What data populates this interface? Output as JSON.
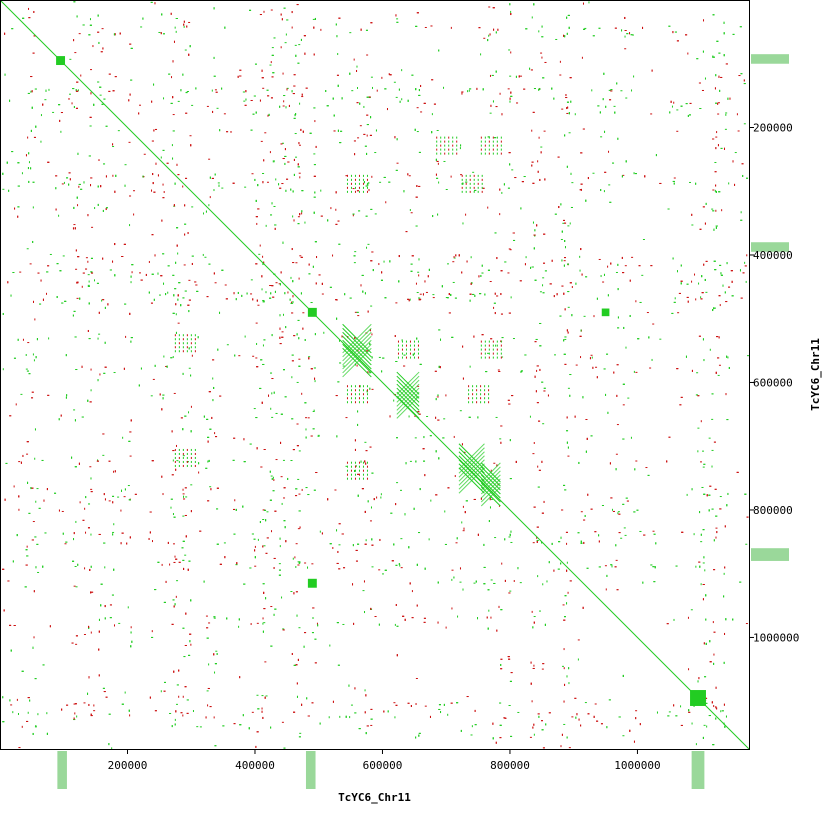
{
  "chart_data": {
    "type": "scatter",
    "subtype": "dotplot",
    "title": "",
    "xlabel": "TcYC6_Chr11",
    "ylabel": "TcYC6_Chr11",
    "xlim": [
      0,
      1175000
    ],
    "ylim": [
      0,
      1175000
    ],
    "y_inverted": true,
    "x_ticks": [
      200000,
      400000,
      600000,
      800000,
      1000000
    ],
    "y_ticks": [
      200000,
      400000,
      600000,
      800000,
      1000000
    ],
    "x_tick_labels": [
      "200000",
      "400000",
      "600000",
      "800000",
      "1000000"
    ],
    "y_tick_labels": [
      "200000",
      "400000",
      "600000",
      "800000",
      "1000000"
    ],
    "grid": false,
    "legend": "none",
    "colors": {
      "forward": "#22cc22",
      "reverse": "#cc1111",
      "margin_track": "#9ad89a",
      "frame": "#000000"
    },
    "series": [
      {
        "kind": "self-diagonal",
        "orientation": "forward",
        "x": [
          0,
          1175000
        ],
        "y": [
          0,
          1175000
        ]
      },
      {
        "kind": "block-clusters",
        "orientation": "forward",
        "points": [
          {
            "x": 95000,
            "y": 95000,
            "size": 14000
          },
          {
            "x": 490000,
            "y": 490000,
            "size": 14000
          },
          {
            "x": 1095000,
            "y": 1095000,
            "size": 25000
          },
          {
            "x": 490000,
            "y": 915000,
            "size": 14000
          },
          {
            "x": 950000,
            "y": 490000,
            "size": 12000
          },
          {
            "x": 560000,
            "y": 550000,
            "size": 45000
          },
          {
            "x": 640000,
            "y": 620000,
            "size": 35000
          },
          {
            "x": 740000,
            "y": 735000,
            "size": 40000
          },
          {
            "x": 770000,
            "y": 760000,
            "size": 30000
          }
        ]
      },
      {
        "kind": "repeat-grids",
        "orientation": "mixed",
        "points": [
          {
            "x": 560000,
            "y": 290000
          },
          {
            "x": 740000,
            "y": 290000
          },
          {
            "x": 700000,
            "y": 230000
          },
          {
            "x": 770000,
            "y": 230000
          },
          {
            "x": 770000,
            "y": 550000
          },
          {
            "x": 640000,
            "y": 550000
          },
          {
            "x": 750000,
            "y": 620000
          },
          {
            "x": 560000,
            "y": 740000
          },
          {
            "x": 560000,
            "y": 620000
          },
          {
            "x": 290000,
            "y": 540000
          },
          {
            "x": 290000,
            "y": 720000
          }
        ]
      }
    ],
    "margin_tracks": {
      "right": [
        {
          "start": 85000,
          "end": 100000
        },
        {
          "start": 380000,
          "end": 395000
        },
        {
          "start": 860000,
          "end": 880000
        }
      ],
      "bottom": [
        {
          "start": 90000,
          "end": 105000
        },
        {
          "start": 480000,
          "end": 495000
        },
        {
          "start": 1085000,
          "end": 1105000
        }
      ]
    }
  }
}
